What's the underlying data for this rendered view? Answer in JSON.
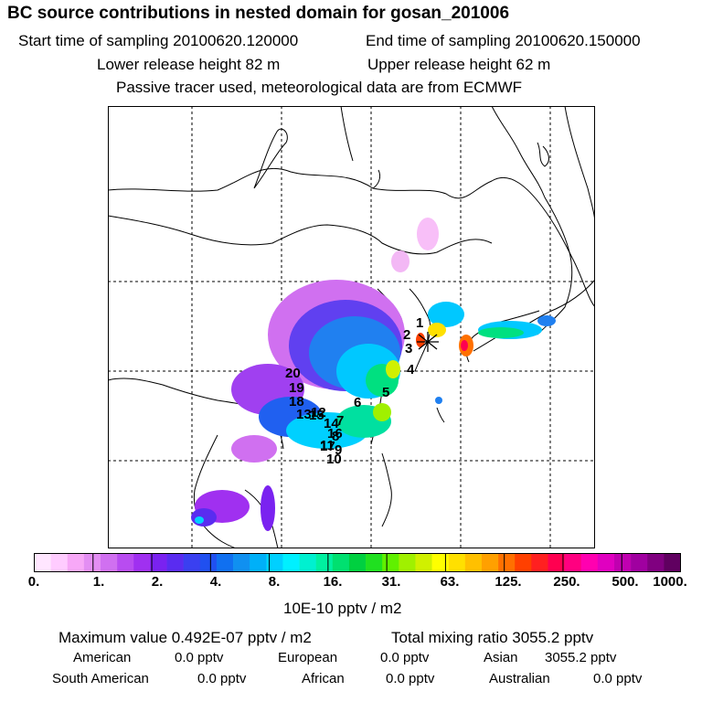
{
  "header": {
    "title": "BC  source contributions in nested domain for gosan_201006",
    "start_time": "Start time of sampling 20100620.120000",
    "end_time": "End time of sampling 20100620.150000",
    "lower_release": "Lower release height   82 m",
    "upper_release": "Upper release height   62 m",
    "tracer_note": "Passive tracer used, meteorological data are from ECMWF"
  },
  "map": {
    "receptor_symbol": "*",
    "markers": [
      "1",
      "2",
      "3",
      "4",
      "5",
      "6",
      "7",
      "8",
      "9",
      "10",
      "11",
      "12",
      "13",
      "14",
      "15",
      "16",
      "17",
      "18",
      "19",
      "20"
    ]
  },
  "colorbar": {
    "labels": [
      "0.",
      "1.",
      "2.",
      "4.",
      "8.",
      "16.",
      "31.",
      "63.",
      "125.",
      "250.",
      "500.",
      "1000."
    ],
    "unit": "10E-10 pptv / m2",
    "colors": [
      "#ffe6ff",
      "#ffccff",
      "#f7a8f7",
      "#e38ef3",
      "#d070f0",
      "#b84cf0",
      "#a030f0",
      "#7a22f0",
      "#5a2cf0",
      "#3a40f0",
      "#2050f0",
      "#1070f0",
      "#1090f0",
      "#00b0f8",
      "#00d0ff",
      "#00f0ff",
      "#00f0d0",
      "#00f0a0",
      "#00e070",
      "#00d040",
      "#20e020",
      "#60f000",
      "#a0f000",
      "#d0f000",
      "#ffff00",
      "#ffe000",
      "#ffc000",
      "#ffa000",
      "#ff7000",
      "#ff4000",
      "#ff2020",
      "#ff0050",
      "#ff0080",
      "#ff00b0",
      "#e000c0",
      "#c000b0",
      "#a000a0",
      "#800080",
      "#600060"
    ]
  },
  "stats": {
    "max_value": "Maximum value  0.492E-07 pptv / m2",
    "total_mixing": "Total mixing ratio     3055.2 pptv",
    "american_label": "American",
    "american_value": "0.0 pptv",
    "european_label": "European",
    "european_value": "0.0 pptv",
    "asian_label": "Asian",
    "asian_value": "3055.2 pptv",
    "south_american_label": "South American",
    "south_american_value": "0.0 pptv",
    "african_label": "African",
    "african_value": "0.0 pptv",
    "australian_label": "Australian",
    "australian_value": "0.0 pptv"
  }
}
